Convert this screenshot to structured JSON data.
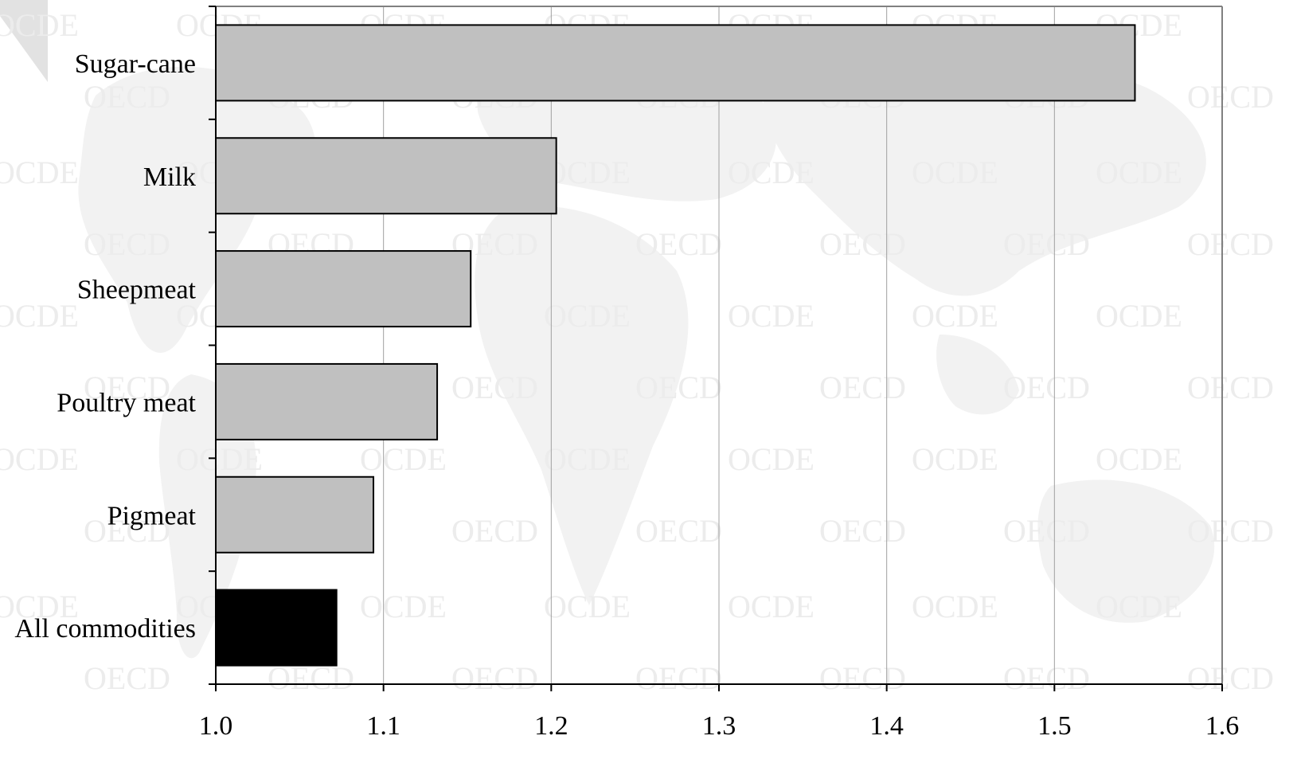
{
  "watermark": {
    "texts": [
      "OECD",
      "OCDE"
    ],
    "color": "#ececec"
  },
  "chart_data": {
    "type": "bar",
    "orientation": "horizontal",
    "categories": [
      "Sugar-cane",
      "Milk",
      "Sheepmeat",
      "Poultry meat",
      "Pigmeat",
      "All commodities"
    ],
    "values": [
      1.548,
      1.203,
      1.152,
      1.132,
      1.094,
      1.072
    ],
    "bar_colors": [
      "#c0c0c0",
      "#c0c0c0",
      "#c0c0c0",
      "#c0c0c0",
      "#c0c0c0",
      "#000000"
    ],
    "xlim": [
      1.0,
      1.6
    ],
    "xticks": [
      "1.0",
      "1.1",
      "1.2",
      "1.3",
      "1.4",
      "1.5",
      "1.6"
    ],
    "grid": true,
    "legend": "none"
  }
}
